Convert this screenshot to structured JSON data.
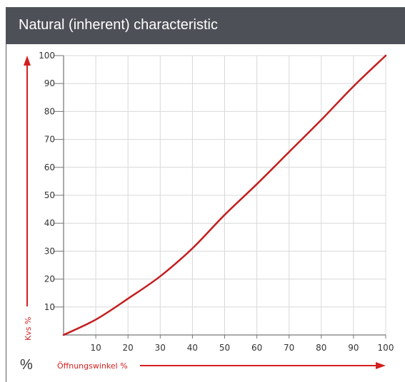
{
  "header": {
    "title": "Natural (inherent) characteristic"
  },
  "colors": {
    "header_bg": "#4d5057",
    "curve": "#c41e1e",
    "accent_red": "#d22020",
    "grid": "#d8d8d8"
  },
  "chart_data": {
    "type": "line",
    "title": "",
    "xlabel": "Öffnungswinkel %",
    "ylabel": "Kvs %",
    "unit_label": "%",
    "xlim": [
      0,
      100
    ],
    "ylim": [
      0,
      100
    ],
    "x_ticks": [
      "10",
      "20",
      "30",
      "40",
      "50",
      "60",
      "70",
      "80",
      "90",
      "100"
    ],
    "y_ticks": [
      "10",
      "20",
      "30",
      "40",
      "50",
      "60",
      "70",
      "80",
      "90",
      "100"
    ],
    "grid": true,
    "series": [
      {
        "x": [
          0,
          10,
          20,
          30,
          40,
          50,
          60,
          70,
          80,
          90,
          100
        ],
        "y": [
          0,
          5.5,
          13,
          21,
          31,
          43,
          54,
          65.5,
          77,
          89,
          100
        ]
      }
    ]
  }
}
